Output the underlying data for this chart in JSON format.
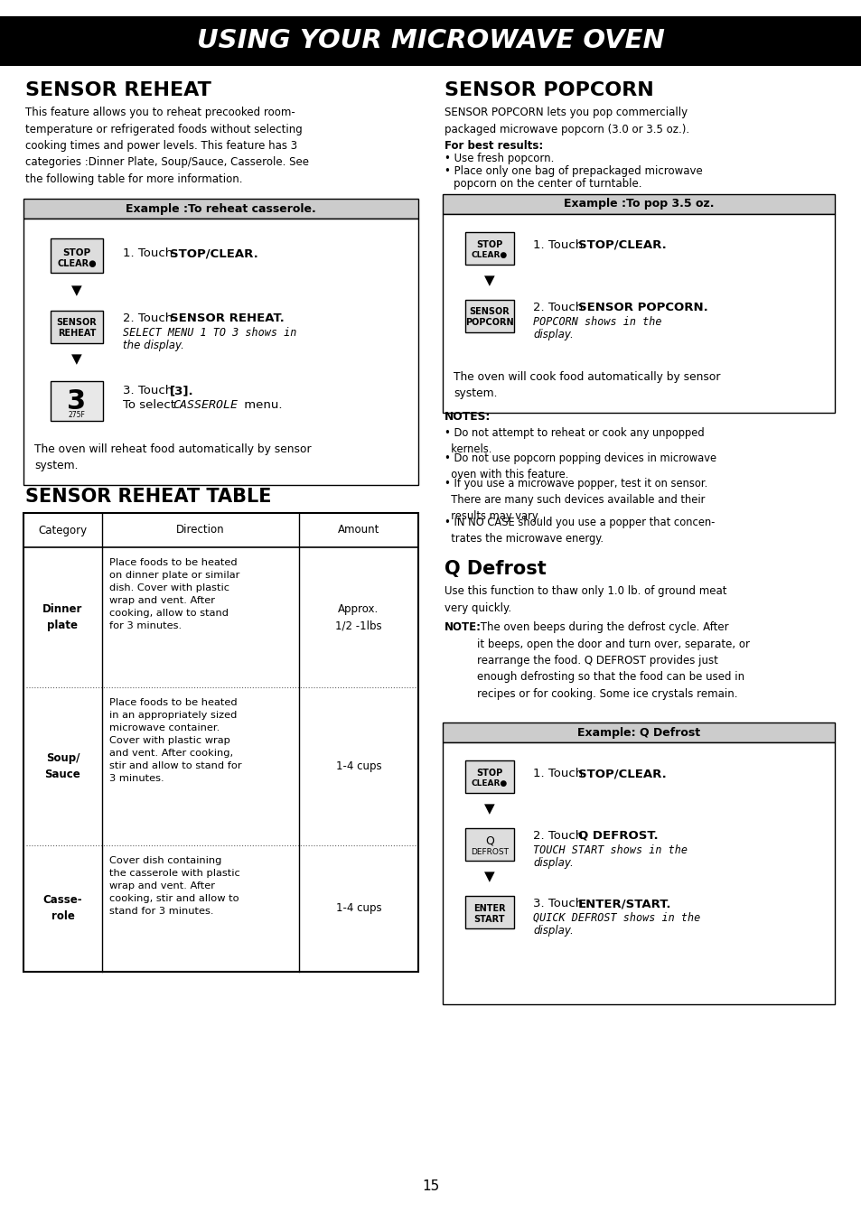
{
  "title": "USING YOUR MICROWAVE OVEN",
  "page_number": "15",
  "left_col": {
    "sensor_reheat_title": "SENSOR REHEAT",
    "sensor_reheat_body": "This feature allows you to reheat precooked room-\ntemperature or refrigerated foods without selecting\ncooking times and power levels. This feature has 3\ncategories :Dinner Plate, Soup/Sauce, Casserole. See\nthe following table for more information.",
    "example_title": "Example :To reheat casserole.",
    "oven_note": "The oven will reheat food automatically by sensor\nsystem.",
    "table_title": "SENSOR REHEAT TABLE",
    "table_headers": [
      "Category",
      "Direction",
      "Amount"
    ],
    "table_rows": [
      [
        "Dinner\nplate",
        "Place foods to be heated\non dinner plate or similar\ndish. Cover with plastic\nwrap and vent. After\ncooking, allow to stand\nfor 3 minutes.",
        "Approx.\n1/2 -1lbs"
      ],
      [
        "Soup/\nSauce",
        "Place foods to be heated\nin an appropriately sized\nmicrowave container.\nCover with plastic wrap\nand vent. After cooking,\nstir and allow to stand for\n3 minutes.",
        "1-4 cups"
      ],
      [
        "Casse-\nrole",
        "Cover dish containing\nthe casserole with plastic\nwrap and vent. After\ncooking, stir and allow to\nstand for 3 minutes.",
        "1-4 cups"
      ]
    ]
  },
  "right_col": {
    "sensor_popcorn_title": "SENSOR POPCORN",
    "sensor_popcorn_body": "SENSOR POPCORN lets you pop commercially\npackaged microwave popcorn (3.0 or 3.5 oz.).",
    "best_results_bold": "For best results:",
    "best_results_items": [
      "Use fresh popcorn.",
      "Place only one bag of prepackaged microwave\n   popcorn on the center of turntable."
    ],
    "example_title": "Example :To pop 3.5 oz.",
    "oven_note": "The oven will cook food automatically by sensor\nsystem.",
    "notes_title": "NOTES:",
    "notes_items": [
      "Do not attempt to reheat or cook any unpopped\n  kernels.",
      "Do not use popcorn popping devices in microwave\n  oven with this feature.",
      "If you use a microwave popper, test it on sensor.\n  There are many such devices available and their\n  results may vary.",
      "IN NO CASE should you use a popper that concen-\n  trates the microwave energy."
    ],
    "q_defrost_title": "Q Defrost",
    "q_defrost_body": "Use this function to thaw only 1.0 lb. of ground meat\nvery quickly.",
    "note_bold": "NOTE:",
    "note_body": " The oven beeps during the defrost cycle. After\nit beeps, open the door and turn over, separate, or\nrearrange the food. Q DEFROST provides just\nenough defrosting so that the food can be used in\nrecipes or for cooking. Some ice crystals remain.",
    "example_title2": "Example: Q Defrost"
  }
}
